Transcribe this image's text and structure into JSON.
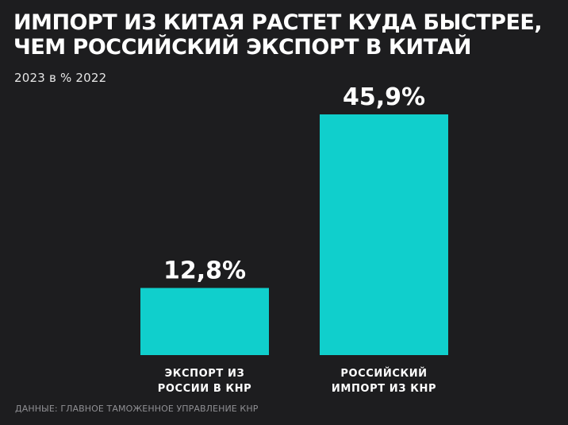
{
  "header": {
    "title_line1": "ИМПОРТ ИЗ КИТАЯ РАСТЕТ КУДА БЫСТРЕЕ,",
    "title_line2": "ЧЕМ РОССИЙСКИЙ ЭКСПОРТ В КИТАЙ",
    "subtitle": "2023 в % 2022"
  },
  "footer": {
    "source": "ДАННЫЕ: ГЛАВНОЕ ТАМОЖЕННОЕ УПРАВЛЕНИЕ КНР"
  },
  "colors": {
    "background": "#1d1d1f",
    "bar": "#10cfcc",
    "text": "#ffffff"
  },
  "chart_data": {
    "type": "bar",
    "title": "ИМПОРТ ИЗ КИТАЯ РАСТЕТ КУДА БЫСТРЕЕ, ЧЕМ РОССИЙСКИЙ ЭКСПОРТ В КИТАЙ",
    "subtitle": "2023 в % 2022",
    "categories": [
      [
        "ЭКСПОРТ ИЗ",
        "РОССИИ В КНР"
      ],
      [
        "РОССИЙСКИЙ",
        "ИМПОРТ ИЗ КНР"
      ]
    ],
    "values": [
      12.8,
      45.9
    ],
    "value_labels": [
      "12,8%",
      "45,9%"
    ],
    "unit": "%",
    "ylim": [
      0,
      45.9
    ],
    "grid": false,
    "legend": "none"
  }
}
